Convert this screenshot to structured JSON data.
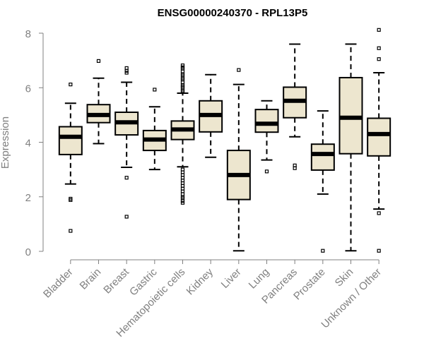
{
  "chart_data": {
    "type": "boxplot",
    "title": "ENSG00000240370 - RPL13P5",
    "xlabel": "",
    "ylabel": "Expression",
    "ylim": [
      0,
      8
    ],
    "yticks": [
      0,
      2,
      4,
      6,
      8
    ],
    "colors": {
      "box_fill": "#ede6cf",
      "box_stroke": "#000000",
      "median": "#000000",
      "axis": "#808080",
      "tick_text": "#808080",
      "title": "#000000"
    },
    "categories": [
      "Bladder",
      "Brain",
      "Breast",
      "Gastric",
      "Hematopoietic cells",
      "Kidney",
      "Liver",
      "Lung",
      "Pancreas",
      "Prostate",
      "Skin",
      "Unknown / Other"
    ],
    "boxes": [
      {
        "category": "Bladder",
        "whisker_low": 2.47,
        "q1": 3.55,
        "median": 4.2,
        "q3": 4.57,
        "whisker_high": 5.43,
        "outliers": [
          6.12,
          1.93,
          1.88,
          0.75
        ]
      },
      {
        "category": "Brain",
        "whisker_low": 3.95,
        "q1": 4.72,
        "median": 5.0,
        "q3": 5.38,
        "whisker_high": 6.35,
        "outliers": [
          6.98
        ]
      },
      {
        "category": "Breast",
        "whisker_low": 3.08,
        "q1": 4.27,
        "median": 4.73,
        "q3": 5.1,
        "whisker_high": 6.2,
        "outliers": [
          6.72,
          6.62,
          6.55,
          2.7,
          1.27
        ]
      },
      {
        "category": "Gastric",
        "whisker_low": 3.0,
        "q1": 3.7,
        "median": 4.1,
        "q3": 4.43,
        "whisker_high": 5.3,
        "outliers": [
          5.93
        ]
      },
      {
        "category": "Hematopoietic cells",
        "whisker_low": 3.1,
        "q1": 4.1,
        "median": 4.47,
        "q3": 4.78,
        "whisker_high": 5.8,
        "outliers": [
          6.82,
          6.75,
          6.7,
          6.6,
          6.5,
          6.45,
          6.35,
          6.3,
          6.2,
          6.1,
          6.05,
          6.0,
          5.9,
          5.85,
          3.0,
          2.9,
          2.8,
          2.7,
          2.6,
          2.5,
          2.4,
          2.3,
          2.2,
          2.1,
          2.0,
          1.95,
          1.85,
          1.78
        ]
      },
      {
        "category": "Kidney",
        "whisker_low": 3.45,
        "q1": 4.38,
        "median": 5.0,
        "q3": 5.52,
        "whisker_high": 6.48,
        "outliers": []
      },
      {
        "category": "Liver",
        "whisker_low": 0.02,
        "q1": 1.9,
        "median": 2.8,
        "q3": 3.7,
        "whisker_high": 6.12,
        "outliers": [
          6.65
        ]
      },
      {
        "category": "Lung",
        "whisker_low": 3.35,
        "q1": 4.37,
        "median": 4.68,
        "q3": 5.2,
        "whisker_high": 5.52,
        "outliers": [
          2.93
        ]
      },
      {
        "category": "Pancreas",
        "whisker_low": 4.2,
        "q1": 4.9,
        "median": 5.52,
        "q3": 6.02,
        "whisker_high": 7.6,
        "outliers": [
          3.15,
          3.05
        ]
      },
      {
        "category": "Prostate",
        "whisker_low": 2.1,
        "q1": 2.98,
        "median": 3.57,
        "q3": 3.93,
        "whisker_high": 5.15,
        "outliers": [
          0.02
        ]
      },
      {
        "category": "Skin",
        "whisker_low": 0.02,
        "q1": 3.58,
        "median": 4.9,
        "q3": 6.37,
        "whisker_high": 7.6,
        "outliers": []
      },
      {
        "category": "Unknown / Other",
        "whisker_low": 1.55,
        "q1": 3.5,
        "median": 4.3,
        "q3": 4.88,
        "whisker_high": 6.55,
        "outliers": [
          8.12,
          7.45,
          7.05,
          1.4,
          0.02
        ]
      }
    ]
  }
}
